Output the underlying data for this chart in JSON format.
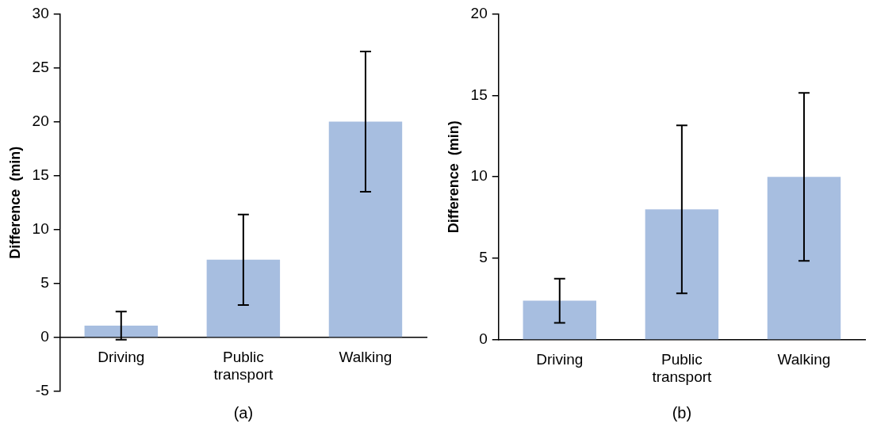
{
  "chart_data": [
    {
      "type": "bar",
      "xlabel": "(a)",
      "ylabel": "Difference  (min)",
      "categories": [
        "Driving",
        "Public transport",
        "Walking"
      ],
      "values": [
        1.1,
        7.2,
        20.0
      ],
      "errors": [
        1.3,
        4.2,
        6.5
      ],
      "color": "#a7bee0",
      "ylim": [
        -5,
        30
      ],
      "yticks": [
        -5,
        0,
        5,
        10,
        15,
        20,
        25,
        30
      ],
      "grid": false,
      "legend": false
    },
    {
      "type": "bar",
      "xlabel": "(b)",
      "ylabel": "Difference  (min)",
      "categories": [
        "Driving",
        "Public transport",
        "Walking"
      ],
      "values": [
        2.4,
        8.0,
        10.0
      ],
      "errors": [
        1.35,
        5.15,
        5.15
      ],
      "color": "#a7bee0",
      "ylim": [
        0,
        20
      ],
      "yticks": [
        0,
        5,
        10,
        15,
        20
      ],
      "grid": false,
      "legend": false
    }
  ]
}
